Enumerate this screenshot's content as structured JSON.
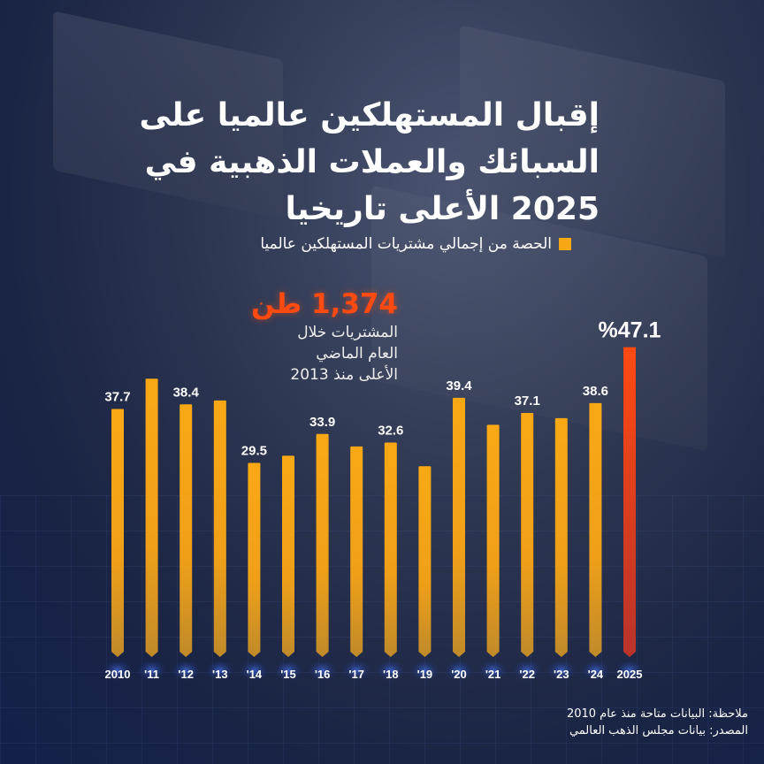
{
  "title": "إقبال المستهلكين عالميا على السبائك والعملات الذهبية في 2025 الأعلى تاريخيا",
  "title_lines": [
    "إقبال المستهلكين عالميا على",
    "السبائك والعملات الذهبية في",
    "2025 الأعلى تاريخيا"
  ],
  "legend": {
    "label": "الحصة من إجمالي مشتريات المستهلكين عالميا",
    "color": "#f7a614"
  },
  "annotation": {
    "value": "1,374 طن",
    "lines": [
      "المشتريات خلال",
      "العام الماضي",
      "الأعلى منذ 2013"
    ],
    "color": "#ff4a12"
  },
  "footnotes": {
    "note": "ملاحظة: البيانات متاحة منذ عام 2010",
    "source": "المصدر: بيانات مجلس الذهب العالمي"
  },
  "chart_data": {
    "type": "bar",
    "categories": [
      "2010",
      "'11",
      "'12",
      "'13",
      "'14",
      "'15",
      "'16",
      "'17",
      "'18",
      "'19",
      "'20",
      "'21",
      "'22",
      "'23",
      "'24",
      "2025"
    ],
    "values": [
      37.7,
      42.3,
      38.4,
      39.0,
      29.5,
      30.6,
      33.9,
      32.0,
      32.6,
      29.0,
      39.4,
      35.3,
      37.1,
      36.3,
      38.6,
      47.1
    ],
    "data_labels": [
      "37.7",
      "",
      "38.4",
      "",
      "29.5",
      "",
      "33.9",
      "",
      "32.6",
      "",
      "39.4",
      "",
      "37.1",
      "",
      "38.6",
      "%47.1"
    ],
    "ylim": [
      0,
      48
    ],
    "colors": {
      "default": "#f7a614",
      "highlight": "#ff4a12"
    },
    "highlight_index": 15,
    "grid": false
  }
}
